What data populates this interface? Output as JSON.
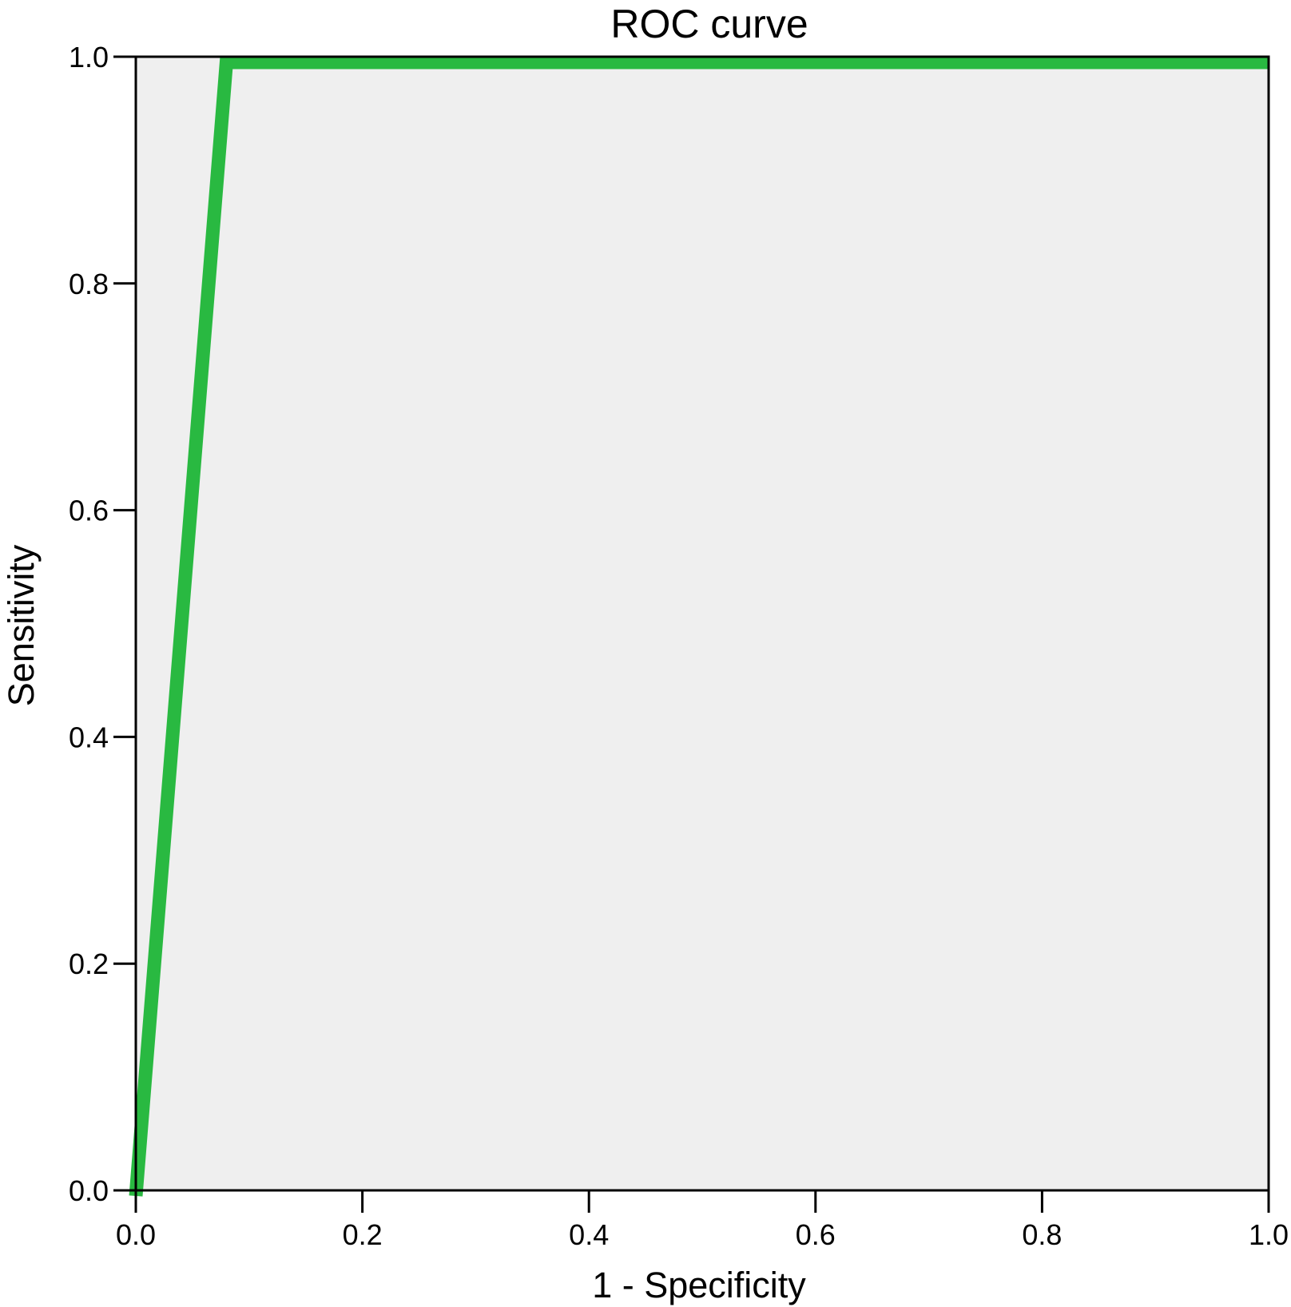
{
  "colors": {
    "plot_background": "#efefef",
    "curve": "#29b941",
    "axis": "#000000"
  },
  "chart_data": {
    "type": "line",
    "title": "ROC curve",
    "xlabel": "1 - Specificity",
    "ylabel": "Sensitivity",
    "xlim": [
      0.0,
      1.0
    ],
    "ylim": [
      0.0,
      1.0
    ],
    "x_ticks": [
      "0.0",
      "0.2",
      "0.4",
      "0.6",
      "0.8",
      "1.0"
    ],
    "y_ticks": [
      "0.0",
      "0.2",
      "0.4",
      "0.6",
      "0.8",
      "1.0"
    ],
    "grid": false,
    "series": [
      {
        "x": [
          0.0,
          0.08,
          1.0
        ],
        "y": [
          0.0,
          1.0,
          1.0
        ]
      }
    ]
  }
}
